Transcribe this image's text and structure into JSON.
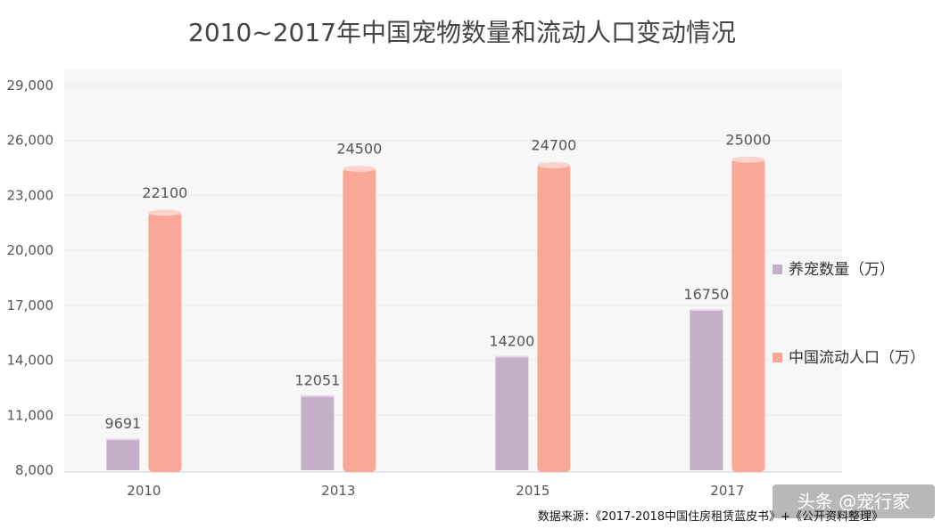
{
  "chart_data": {
    "type": "bar",
    "title": "2010~2017年中国宠物数量和流动人口变动情况",
    "categories": [
      "2010",
      "2013",
      "2015",
      "2017"
    ],
    "series": [
      {
        "name": "养宠数量（万）",
        "values": [
          9691,
          12051,
          14200,
          16750
        ],
        "color": "#c4aec8"
      },
      {
        "name": "中国流动人口（万）",
        "values": [
          22100,
          24500,
          24700,
          25000
        ],
        "color": "#f9a898"
      }
    ],
    "yticks": [
      "29,000",
      "26,000",
      "23,000",
      "20,000",
      "17,000",
      "14,000",
      "11,000",
      "8,000"
    ],
    "ylim": [
      8000,
      29000
    ],
    "ystep": 3000,
    "grid": true,
    "legend_position": "right"
  },
  "source_text": "数据来源：《2017-2018中国住房租赁蓝皮书》+《公开资料整理》",
  "watermark": "头条 @宠行家"
}
